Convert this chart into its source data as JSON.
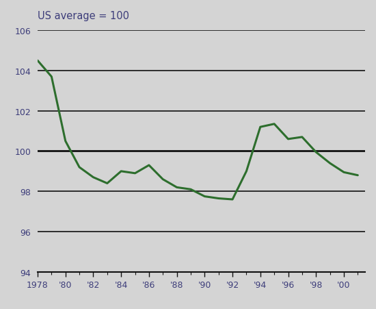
{
  "years": [
    1978,
    1979,
    1980,
    1981,
    1982,
    1983,
    1984,
    1985,
    1986,
    1987,
    1988,
    1989,
    1990,
    1991,
    1992,
    1993,
    1994,
    1995,
    1996,
    1997,
    1998,
    1999,
    2000,
    2001
  ],
  "values": [
    104.5,
    103.7,
    100.5,
    99.2,
    98.7,
    98.4,
    99.0,
    98.9,
    99.3,
    98.6,
    98.2,
    98.1,
    97.75,
    97.65,
    97.6,
    99.0,
    101.2,
    101.35,
    100.6,
    100.7,
    99.95,
    99.4,
    98.95,
    98.8
  ],
  "line_color": "#2d6e2d",
  "line_width": 2.2,
  "bg_color": "#d4d4d4",
  "title": "US average = 100",
  "title_color": "#3d3d7a",
  "title_fontsize": 10.5,
  "xlim": [
    1978,
    2001.5
  ],
  "ylim": [
    94,
    106
  ],
  "yticks": [
    94,
    96,
    98,
    100,
    102,
    104,
    106
  ],
  "xtick_labels": [
    "1978",
    "'80",
    "'82",
    "'84",
    "'86",
    "'88",
    "'90",
    "'92",
    "'94",
    "'96",
    "'98",
    "'00"
  ],
  "xtick_positions": [
    1978,
    1980,
    1982,
    1984,
    1986,
    1988,
    1990,
    1992,
    1994,
    1996,
    1998,
    2000
  ],
  "grid_color": "#111111",
  "grid_linewidth": 1.2,
  "grid_100_linewidth": 2.0,
  "tick_label_color": "#3d3d7a",
  "tick_label_fontsize": 9
}
